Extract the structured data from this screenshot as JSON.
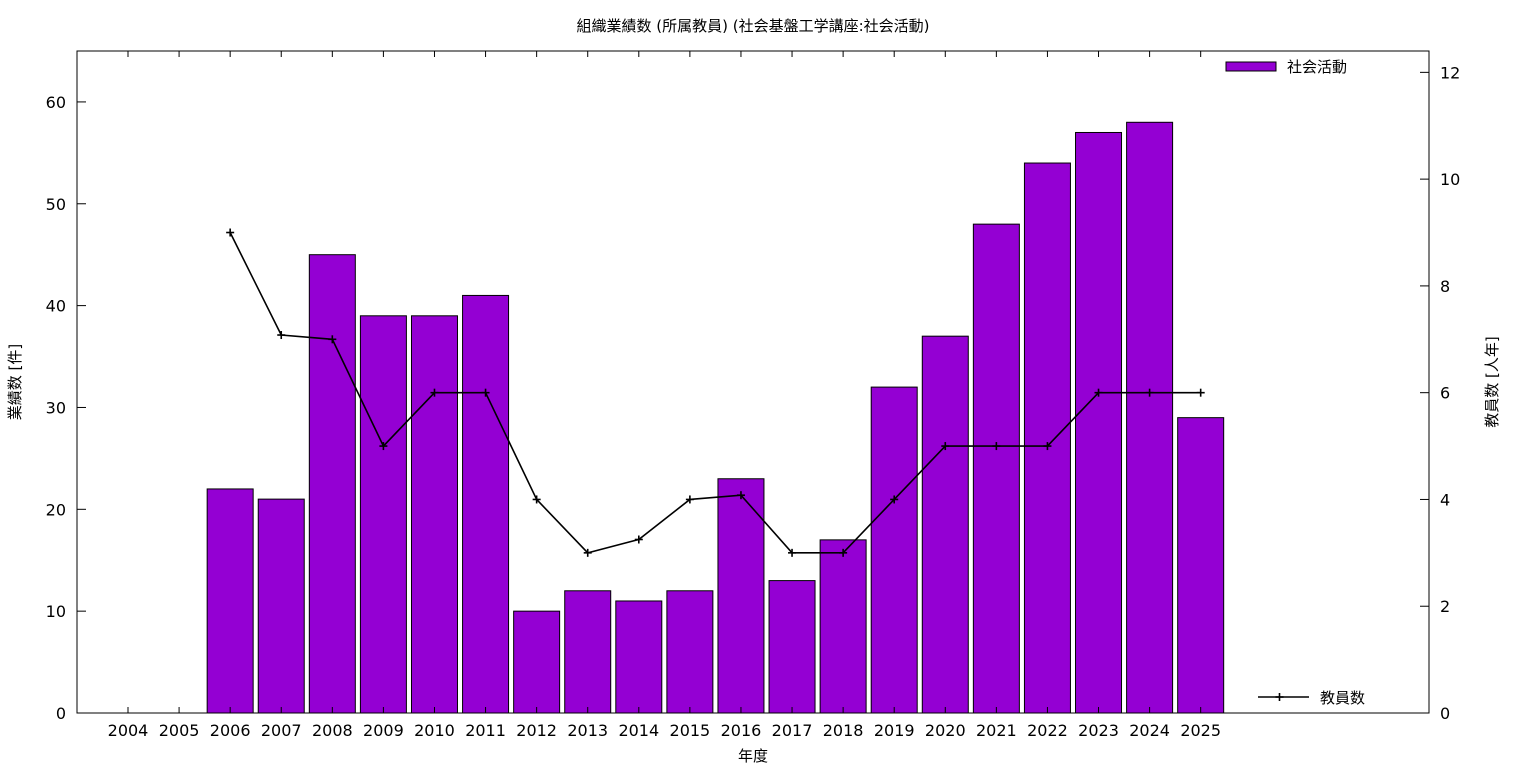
{
  "chart_data": {
    "type": "bar",
    "title": "組織業績数 (所属教員) (社会基盤工学講座:社会活動)",
    "xlabel": "年度",
    "ylabel": "業績数 [件]",
    "y2label": "教員数 [人年]",
    "categories": [
      "2004",
      "2005",
      "2006",
      "2007",
      "2008",
      "2009",
      "2010",
      "2011",
      "2012",
      "2013",
      "2014",
      "2015",
      "2016",
      "2017",
      "2018",
      "2019",
      "2020",
      "2021",
      "2022",
      "2023",
      "2024",
      "2025"
    ],
    "series": [
      {
        "name": "社会活動",
        "type": "bar",
        "axis": "left",
        "color": "#9400d3",
        "values": [
          null,
          null,
          22,
          21,
          45,
          39,
          39,
          41,
          10,
          12,
          11,
          12,
          23,
          13,
          17,
          32,
          37,
          48,
          54,
          57,
          58,
          29
        ]
      },
      {
        "name": "教員数",
        "type": "line",
        "axis": "right",
        "color": "#000000",
        "marker": "plus",
        "values": [
          null,
          null,
          9,
          7.08,
          7,
          5,
          6,
          6,
          4,
          3,
          3.25,
          4,
          4.08,
          3,
          3,
          4,
          5,
          5,
          5,
          6,
          6,
          6
        ]
      }
    ],
    "ylim": [
      0,
      65
    ],
    "y2lim": [
      0,
      12.4
    ],
    "yticks": [
      "0",
      "10",
      "20",
      "30",
      "40",
      "50",
      "60"
    ],
    "y2ticks": [
      "0",
      "2",
      "4",
      "6",
      "8",
      "10",
      "12"
    ],
    "grid": false,
    "legend": [
      {
        "label": "社会活動",
        "placement": "top-right",
        "style": "bar"
      },
      {
        "label": "教員数",
        "placement": "bottom-right",
        "style": "line"
      }
    ]
  }
}
